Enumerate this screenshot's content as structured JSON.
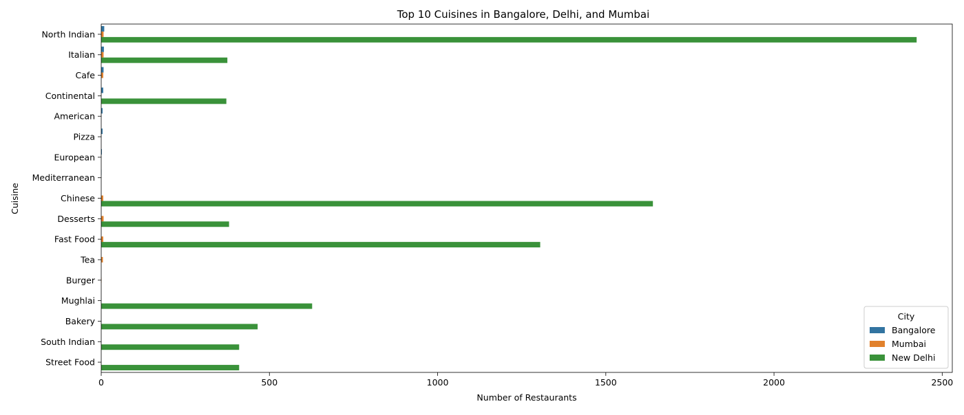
{
  "chart_data": {
    "type": "bar",
    "orientation": "horizontal",
    "title": "Top 10 Cuisines in Bangalore, Delhi, and Mumbai",
    "xlabel": "Number of Restaurants",
    "ylabel": "Cuisine",
    "xlim": [
      0,
      2530
    ],
    "xticks": [
      0,
      500,
      1000,
      1500,
      2000,
      2500
    ],
    "grid": false,
    "legend": {
      "title": "City",
      "position": "lower-right"
    },
    "categories": [
      "North Indian",
      "Italian",
      "Cafe",
      "Continental",
      "American",
      "Pizza",
      "European",
      "Mediterranean",
      "Chinese",
      "Desserts",
      "Fast Food",
      "Tea",
      "Burger",
      "Mughlai",
      "Bakery",
      "South Indian",
      "Street Food"
    ],
    "series": [
      {
        "name": "Bangalore",
        "color": "#3274a1",
        "values": [
          9,
          8,
          7,
          6,
          4,
          4,
          2,
          1,
          0,
          0,
          0,
          0,
          0,
          0,
          0,
          0,
          0
        ]
      },
      {
        "name": "Mumbai",
        "color": "#e1812c",
        "values": [
          7,
          7,
          6,
          0,
          0,
          0,
          0,
          0,
          6,
          7,
          6,
          5,
          1,
          0,
          0,
          0,
          0
        ]
      },
      {
        "name": "New Delhi",
        "color": "#3a923a",
        "values": [
          2424,
          375,
          0,
          372,
          0,
          0,
          0,
          0,
          1640,
          380,
          1305,
          0,
          0,
          627,
          465,
          410,
          410
        ]
      }
    ]
  }
}
